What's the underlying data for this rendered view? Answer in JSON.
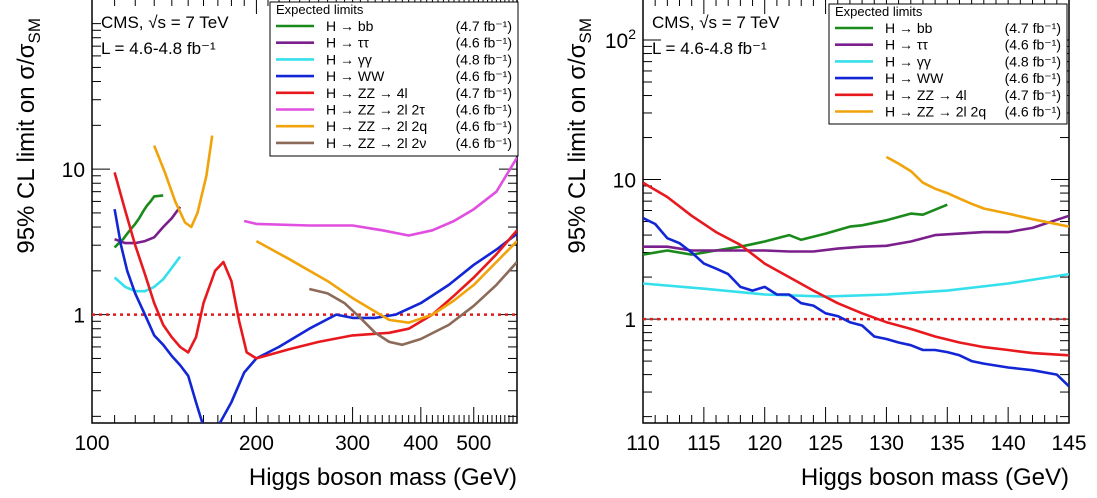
{
  "chart_data": [
    {
      "type": "line",
      "xlabel": "Higgs boson mass (GeV)",
      "ylabel": "95% CL limit on σ/σSM",
      "x_scale": "log",
      "y_scale": "log",
      "xlim": [
        100,
        600
      ],
      "ylim": [
        0.18,
        150
      ],
      "x_ticks": [
        100,
        200,
        300,
        400,
        500
      ],
      "x_tick_labels": [
        "100",
        "200",
        "300",
        "400",
        "500"
      ],
      "y_ticks": [
        1,
        10
      ],
      "y_tick_labels": [
        "1",
        "10"
      ],
      "annotation_experiment": "CMS, √s = 7 TeV",
      "annotation_lumi": "L = 4.6-4.8 fb⁻¹",
      "legend_title": "Expected limits",
      "legend_position": "top-right",
      "reference_line": {
        "y": 1,
        "style": "dotted",
        "color": "#e31a1c"
      },
      "series": [
        {
          "name": "H → bb",
          "lumi": "(4.7 fb⁻¹)",
          "color": "#1a8a1a",
          "points": [
            [
              110,
              2.9
            ],
            [
              112,
              3.1
            ],
            [
              114,
              3.3
            ],
            [
              116,
              3.6
            ],
            [
              118,
              3.9
            ],
            [
              120,
              4.2
            ],
            [
              122,
              4.6
            ],
            [
              124,
              5.1
            ],
            [
              126,
              5.6
            ],
            [
              128,
              6.0
            ],
            [
              130,
              6.5
            ],
            [
              135,
              6.6
            ]
          ]
        },
        {
          "name": "H → ττ",
          "lumi": "(4.6 fb⁻¹)",
          "color": "#7b1f8c",
          "points": [
            [
              110,
              3.3
            ],
            [
              115,
              3.1
            ],
            [
              120,
              3.1
            ],
            [
              125,
              3.2
            ],
            [
              130,
              3.4
            ],
            [
              135,
              4.0
            ],
            [
              140,
              4.6
            ],
            [
              145,
              5.5
            ]
          ]
        },
        {
          "name": "H → γγ",
          "lumi": "(4.8 fb⁻¹)",
          "color": "#35e0ec",
          "points": [
            [
              110,
              1.8
            ],
            [
              115,
              1.55
            ],
            [
              120,
              1.45
            ],
            [
              125,
              1.45
            ],
            [
              130,
              1.55
            ],
            [
              135,
              1.75
            ],
            [
              140,
              2.1
            ],
            [
              145,
              2.5
            ]
          ]
        },
        {
          "name": "H → WW",
          "lumi": "(4.6 fb⁻¹)",
          "color": "#1226d6",
          "points": [
            [
              110,
              5.3
            ],
            [
              113,
              3.0
            ],
            [
              116,
              2.0
            ],
            [
              120,
              1.4
            ],
            [
              125,
              1.0
            ],
            [
              130,
              0.72
            ],
            [
              135,
              0.62
            ],
            [
              140,
              0.52
            ],
            [
              145,
              0.45
            ],
            [
              150,
              0.38
            ],
            [
              155,
              0.25
            ],
            [
              160,
              0.17
            ],
            [
              165,
              0.16
            ],
            [
              170,
              0.17
            ],
            [
              180,
              0.25
            ],
            [
              190,
              0.4
            ],
            [
              200,
              0.5
            ],
            [
              220,
              0.6
            ],
            [
              250,
              0.8
            ],
            [
              280,
              1.0
            ],
            [
              300,
              0.95
            ],
            [
              330,
              0.95
            ],
            [
              360,
              1.0
            ],
            [
              400,
              1.2
            ],
            [
              450,
              1.6
            ],
            [
              500,
              2.2
            ],
            [
              550,
              2.8
            ],
            [
              600,
              3.6
            ]
          ]
        },
        {
          "name": "H → ZZ → 4l",
          "lumi": "(4.7 fb⁻¹)",
          "color": "#e8191e",
          "points": [
            [
              110,
              9.5
            ],
            [
              115,
              5.2
            ],
            [
              120,
              3.0
            ],
            [
              125,
              1.9
            ],
            [
              130,
              1.2
            ],
            [
              135,
              0.85
            ],
            [
              140,
              0.7
            ],
            [
              145,
              0.6
            ],
            [
              150,
              0.55
            ],
            [
              155,
              0.7
            ],
            [
              160,
              1.2
            ],
            [
              168,
              2.0
            ],
            [
              174,
              2.3
            ],
            [
              180,
              1.7
            ],
            [
              186,
              0.9
            ],
            [
              192,
              0.55
            ],
            [
              200,
              0.5
            ],
            [
              230,
              0.58
            ],
            [
              260,
              0.65
            ],
            [
              300,
              0.72
            ],
            [
              350,
              0.75
            ],
            [
              380,
              0.8
            ],
            [
              420,
              1.0
            ],
            [
              460,
              1.35
            ],
            [
              500,
              1.8
            ],
            [
              550,
              2.6
            ],
            [
              600,
              3.8
            ]
          ]
        },
        {
          "name": "H → ZZ → 2l 2τ",
          "lumi": "(4.6 fb⁻¹)",
          "color": "#e04fe0",
          "points": [
            [
              190,
              4.4
            ],
            [
              200,
              4.2
            ],
            [
              250,
              4.1
            ],
            [
              300,
              4.1
            ],
            [
              340,
              3.8
            ],
            [
              380,
              3.5
            ],
            [
              420,
              3.8
            ],
            [
              460,
              4.4
            ],
            [
              500,
              5.3
            ],
            [
              550,
              7.0
            ],
            [
              600,
              12.0
            ]
          ]
        },
        {
          "name": "H → ZZ → 2l 2q",
          "lumi": "(4.6 fb⁻¹)",
          "color": "#f0a30a",
          "points": [
            [
              130,
              14.5
            ],
            [
              136,
              9.5
            ],
            [
              142,
              6.0
            ],
            [
              148,
              4.3
            ],
            [
              152,
              4.0
            ],
            [
              156,
              5.0
            ],
            [
              162,
              9.0
            ],
            [
              166,
              17.0
            ],
            [
              200,
              3.2
            ],
            [
              230,
              2.4
            ],
            [
              270,
              1.7
            ],
            [
              300,
              1.3
            ],
            [
              330,
              1.05
            ],
            [
              350,
              0.92
            ],
            [
              380,
              0.88
            ],
            [
              420,
              1.0
            ],
            [
              460,
              1.25
            ],
            [
              500,
              1.6
            ],
            [
              550,
              2.3
            ],
            [
              600,
              3.2
            ]
          ]
        },
        {
          "name": "H → ZZ → 2l 2ν",
          "lumi": "(4.6 fb⁻¹)",
          "color": "#8c6a5a",
          "points": [
            [
              250,
              1.5
            ],
            [
              270,
              1.4
            ],
            [
              290,
              1.2
            ],
            [
              310,
              0.95
            ],
            [
              330,
              0.75
            ],
            [
              350,
              0.65
            ],
            [
              370,
              0.62
            ],
            [
              400,
              0.68
            ],
            [
              450,
              0.85
            ],
            [
              500,
              1.15
            ],
            [
              550,
              1.6
            ],
            [
              600,
              2.3
            ]
          ]
        }
      ]
    },
    {
      "type": "line",
      "xlabel": "Higgs boson mass (GeV)",
      "ylabel": "95% CL limit on σ/σSM",
      "x_scale": "linear",
      "y_scale": "log",
      "xlim": [
        110,
        145
      ],
      "ylim": [
        0.18,
        200
      ],
      "x_ticks": [
        110,
        115,
        120,
        125,
        130,
        135,
        140,
        145
      ],
      "x_tick_labels": [
        "110",
        "115",
        "120",
        "125",
        "130",
        "135",
        "140",
        "145"
      ],
      "y_ticks": [
        1,
        10,
        100
      ],
      "y_tick_labels": [
        "1",
        "10",
        "10²"
      ],
      "annotation_experiment": "CMS, √s = 7 TeV",
      "annotation_lumi": "L = 4.6-4.8 fb⁻¹",
      "legend_title": "Expected limits",
      "legend_position": "top-right",
      "reference_line": {
        "y": 1,
        "style": "dotted",
        "color": "#e31a1c"
      },
      "series": [
        {
          "name": "H → bb",
          "lumi": "(4.7 fb⁻¹)",
          "color": "#1a8a1a",
          "points": [
            [
              110,
              2.9
            ],
            [
              112,
              3.1
            ],
            [
              114,
              2.9
            ],
            [
              116,
              3.1
            ],
            [
              118,
              3.3
            ],
            [
              120,
              3.6
            ],
            [
              122,
              4.0
            ],
            [
              123,
              3.7
            ],
            [
              125,
              4.1
            ],
            [
              127,
              4.6
            ],
            [
              128,
              4.7
            ],
            [
              130,
              5.1
            ],
            [
              132,
              5.7
            ],
            [
              133,
              5.6
            ],
            [
              135,
              6.6
            ]
          ]
        },
        {
          "name": "H → ττ",
          "lumi": "(4.6 fb⁻¹)",
          "color": "#7b1f8c",
          "points": [
            [
              110,
              3.3
            ],
            [
              112,
              3.3
            ],
            [
              114,
              3.1
            ],
            [
              116,
              3.1
            ],
            [
              118,
              3.1
            ],
            [
              120,
              3.1
            ],
            [
              122,
              3.05
            ],
            [
              124,
              3.05
            ],
            [
              126,
              3.2
            ],
            [
              128,
              3.3
            ],
            [
              130,
              3.35
            ],
            [
              132,
              3.6
            ],
            [
              134,
              4.0
            ],
            [
              136,
              4.1
            ],
            [
              138,
              4.2
            ],
            [
              140,
              4.2
            ],
            [
              142,
              4.5
            ],
            [
              145,
              5.5
            ]
          ]
        },
        {
          "name": "H → γγ",
          "lumi": "(4.8 fb⁻¹)",
          "color": "#35e0ec",
          "points": [
            [
              110,
              1.8
            ],
            [
              115,
              1.65
            ],
            [
              120,
              1.5
            ],
            [
              125,
              1.45
            ],
            [
              130,
              1.5
            ],
            [
              135,
              1.6
            ],
            [
              140,
              1.8
            ],
            [
              145,
              2.1
            ]
          ]
        },
        {
          "name": "H → WW",
          "lumi": "(4.6 fb⁻¹)",
          "color": "#1226d6",
          "points": [
            [
              110,
              5.3
            ],
            [
              111,
              4.8
            ],
            [
              112,
              3.8
            ],
            [
              113,
              3.5
            ],
            [
              114,
              3.0
            ],
            [
              115,
              2.5
            ],
            [
              116,
              2.3
            ],
            [
              117,
              2.1
            ],
            [
              118,
              1.7
            ],
            [
              119,
              1.6
            ],
            [
              120,
              1.7
            ],
            [
              121,
              1.5
            ],
            [
              122,
              1.5
            ],
            [
              123,
              1.3
            ],
            [
              124,
              1.25
            ],
            [
              125,
              1.1
            ],
            [
              126,
              1.05
            ],
            [
              127,
              0.95
            ],
            [
              128,
              0.9
            ],
            [
              129,
              0.75
            ],
            [
              130,
              0.72
            ],
            [
              131,
              0.68
            ],
            [
              132,
              0.65
            ],
            [
              133,
              0.6
            ],
            [
              134,
              0.6
            ],
            [
              135,
              0.58
            ],
            [
              136,
              0.55
            ],
            [
              137,
              0.5
            ],
            [
              138,
              0.48
            ],
            [
              140,
              0.45
            ],
            [
              142,
              0.43
            ],
            [
              144,
              0.4
            ],
            [
              145,
              0.33
            ]
          ]
        },
        {
          "name": "H → ZZ → 4l",
          "lumi": "(4.7 fb⁻¹)",
          "color": "#e8191e",
          "points": [
            [
              110,
              9.5
            ],
            [
              112,
              7.5
            ],
            [
              114,
              5.5
            ],
            [
              116,
              4.2
            ],
            [
              118,
              3.4
            ],
            [
              120,
              2.5
            ],
            [
              122,
              2.0
            ],
            [
              124,
              1.6
            ],
            [
              126,
              1.3
            ],
            [
              128,
              1.1
            ],
            [
              130,
              0.95
            ],
            [
              132,
              0.85
            ],
            [
              134,
              0.75
            ],
            [
              136,
              0.68
            ],
            [
              138,
              0.63
            ],
            [
              140,
              0.6
            ],
            [
              142,
              0.57
            ],
            [
              145,
              0.55
            ]
          ]
        },
        {
          "name": "H → ZZ → 2l 2q",
          "lumi": "(4.6 fb⁻¹)",
          "color": "#f0a30a",
          "points": [
            [
              130,
              14.5
            ],
            [
              131,
              13.0
            ],
            [
              132,
              11.5
            ],
            [
              133,
              9.5
            ],
            [
              134,
              8.6
            ],
            [
              135,
              8.0
            ],
            [
              136,
              7.3
            ],
            [
              137,
              6.7
            ],
            [
              138,
              6.2
            ],
            [
              140,
              5.7
            ],
            [
              142,
              5.2
            ],
            [
              145,
              4.6
            ]
          ]
        }
      ]
    }
  ]
}
